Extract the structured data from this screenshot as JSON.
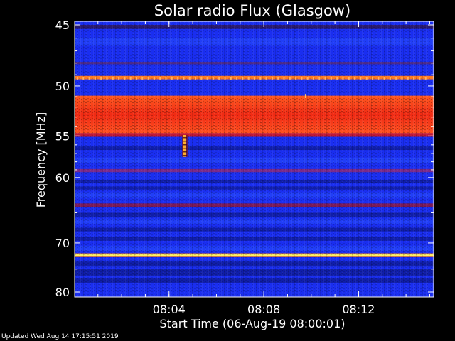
{
  "footer": {
    "updated": "Updated Wed Aug 14 17:15:51 2019"
  },
  "chart_data": {
    "type": "heatmap",
    "title": "Solar radio Flux (Glasgow)",
    "xlabel": "Start Time (06-Aug-19 08:00:01)",
    "ylabel": "Frequency [MHz]",
    "x_range": [
      "08:00:01",
      "08:15:10"
    ],
    "x_ticks": [
      "08:04",
      "08:08",
      "08:12"
    ],
    "y_ticks": [
      45,
      50,
      55,
      60,
      70,
      80
    ],
    "y_range": [
      44.5,
      80
    ],
    "y_scale": "reciprocal",
    "background_color": "#1a2ef0",
    "bands": [
      {
        "freq_from": 45.0,
        "freq_to": 45.3,
        "color": "#2a1a70"
      },
      {
        "freq_from": 47.9,
        "freq_to": 48.1,
        "color": "#4a2a8a"
      },
      {
        "freq_from": 49.1,
        "freq_to": 49.4,
        "color": "#ff7a20"
      },
      {
        "freq_from": 50.9,
        "freq_to": 54.7,
        "color": "#f23018"
      },
      {
        "freq_from": 54.7,
        "freq_to": 55.1,
        "color": "#c01838"
      },
      {
        "freq_from": 58.9,
        "freq_to": 59.3,
        "color": "#7a2a8a"
      },
      {
        "freq_from": 63.6,
        "freq_to": 64.1,
        "color": "#7a1a5a"
      },
      {
        "freq_from": 72.1,
        "freq_to": 72.4,
        "color": "#fff060"
      }
    ],
    "burst": {
      "time": "08:04:40",
      "freq_from": 54.9,
      "freq_to": 57.4,
      "color": "#ffb030"
    }
  }
}
